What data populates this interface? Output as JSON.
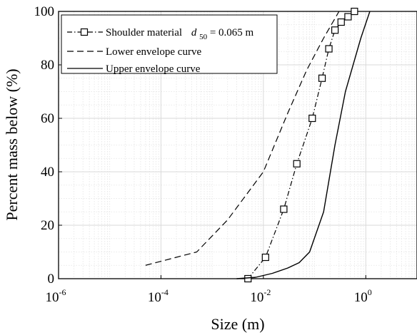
{
  "chart_data": {
    "type": "line",
    "xscale": "log",
    "xlabel": "Size (m)",
    "ylabel": "Percent mass below (%)",
    "xlim": [
      1e-06,
      10
    ],
    "ylim": [
      0,
      100
    ],
    "x_ticks": [
      {
        "base": "10",
        "exp": "-6"
      },
      {
        "base": "10",
        "exp": "-4"
      },
      {
        "base": "10",
        "exp": "-2"
      },
      {
        "base": "10",
        "exp": "0"
      }
    ],
    "y_ticks": [
      "0",
      "20",
      "40",
      "60",
      "80",
      "100"
    ],
    "grid": true,
    "minor_grid": true,
    "legend_position": "top-left",
    "legend": [
      {
        "text": "Shoulder material",
        "math_var": "d",
        "math_sub": "50",
        "math_rest": "= 0.065 m"
      },
      {
        "text": "Lower envelope curve"
      },
      {
        "text": "Upper envelope curve"
      }
    ],
    "series": [
      {
        "name": "Shoulder material",
        "style": "dashdot-square",
        "x": [
          0.005,
          0.011,
          0.025,
          0.045,
          0.09,
          0.14,
          0.19,
          0.25,
          0.33,
          0.45,
          0.6
        ],
        "y": [
          0,
          8,
          26,
          43,
          60,
          75,
          86,
          93,
          96,
          98,
          100
        ]
      },
      {
        "name": "Lower envelope curve",
        "style": "dashed",
        "x": [
          5e-05,
          0.0005,
          0.002,
          0.01,
          0.03,
          0.07,
          0.15,
          0.3
        ],
        "y": [
          5,
          10,
          22,
          40,
          62,
          78,
          90,
          100
        ]
      },
      {
        "name": "Upper envelope curve",
        "style": "solid",
        "x": [
          0.003,
          0.007,
          0.015,
          0.03,
          0.05,
          0.08,
          0.15,
          0.25,
          0.4,
          0.8,
          1.2
        ],
        "y": [
          0,
          0.5,
          2,
          4,
          6,
          10,
          25,
          50,
          70,
          90,
          100
        ]
      }
    ]
  }
}
